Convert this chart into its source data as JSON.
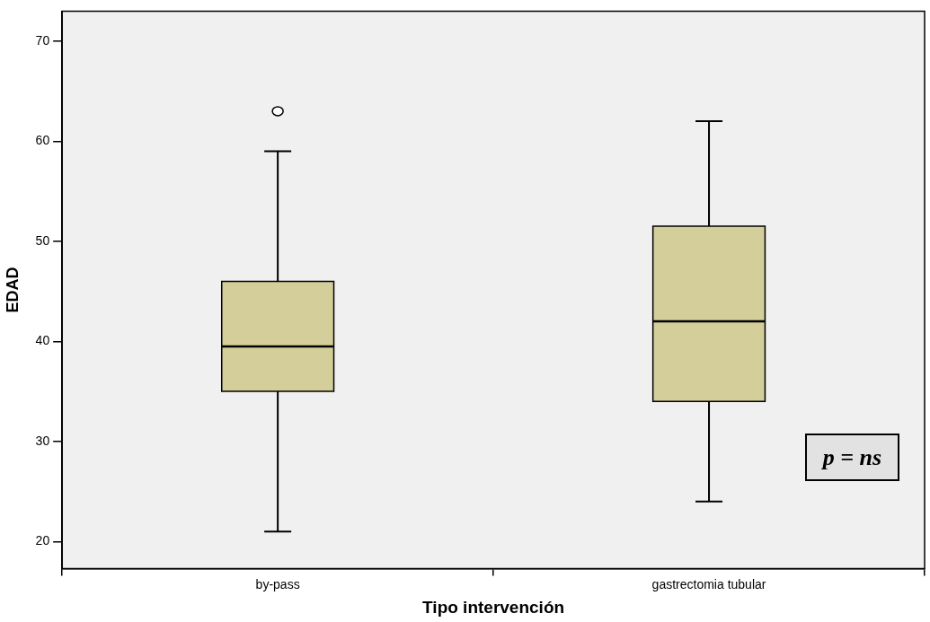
{
  "chart_data": {
    "type": "box",
    "xlabel": "Tipo intervención",
    "ylabel": "EDAD",
    "categories": [
      "by-pass",
      "gastrectomia tubular"
    ],
    "boxes": [
      {
        "low": 21,
        "q1": 35,
        "median": 39.5,
        "q3": 46,
        "high": 59,
        "outliers": [
          63
        ]
      },
      {
        "low": 24,
        "q1": 34,
        "median": 42,
        "q3": 51.5,
        "high": 62
      }
    ],
    "color": "#d3ce9a",
    "ylim": [
      17.3,
      73
    ],
    "yticks": [
      20,
      30,
      40,
      50,
      60,
      70
    ],
    "annotations": [
      "p = ns"
    ]
  }
}
